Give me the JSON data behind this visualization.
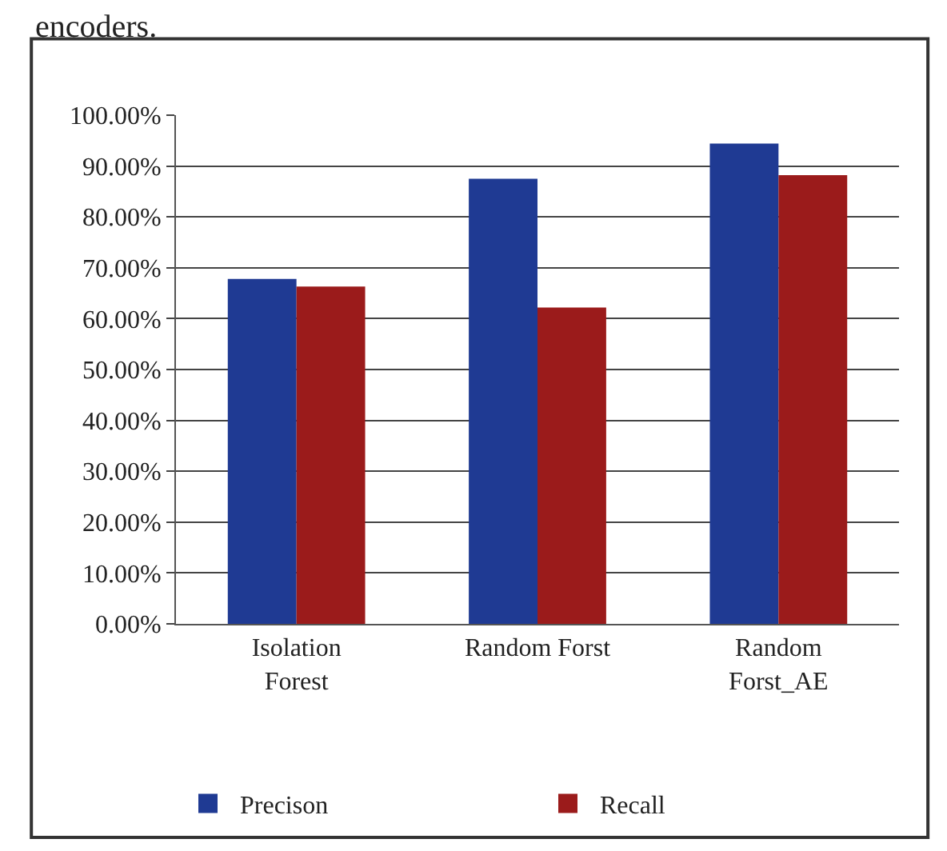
{
  "chart_data": {
    "type": "bar",
    "categories": [
      "Isolation Forest",
      "Random Forst",
      "Random Forst_AE"
    ],
    "series": [
      {
        "name": "Precison",
        "color": "#1f3a93",
        "values": [
          67.8,
          87.5,
          94.4
        ]
      },
      {
        "name": "Recall",
        "color": "#9b1b1b",
        "values": [
          66.3,
          62.2,
          88.2
        ]
      }
    ],
    "ylim": [
      0,
      100
    ],
    "yticks": [
      {
        "value": 0,
        "label": "0.00%"
      },
      {
        "value": 10,
        "label": "10.00%"
      },
      {
        "value": 20,
        "label": "20.00%"
      },
      {
        "value": 30,
        "label": "30.00%"
      },
      {
        "value": 40,
        "label": "40.00%"
      },
      {
        "value": 50,
        "label": "50.00%"
      },
      {
        "value": 60,
        "label": "60.00%"
      },
      {
        "value": 70,
        "label": "70.00%"
      },
      {
        "value": 80,
        "label": "80.00%"
      },
      {
        "value": 90,
        "label": "90.00%"
      },
      {
        "value": 100,
        "label": "100.00%"
      }
    ],
    "grid": "y",
    "legend": "bottom",
    "annotations": [
      "encoders."
    ]
  }
}
